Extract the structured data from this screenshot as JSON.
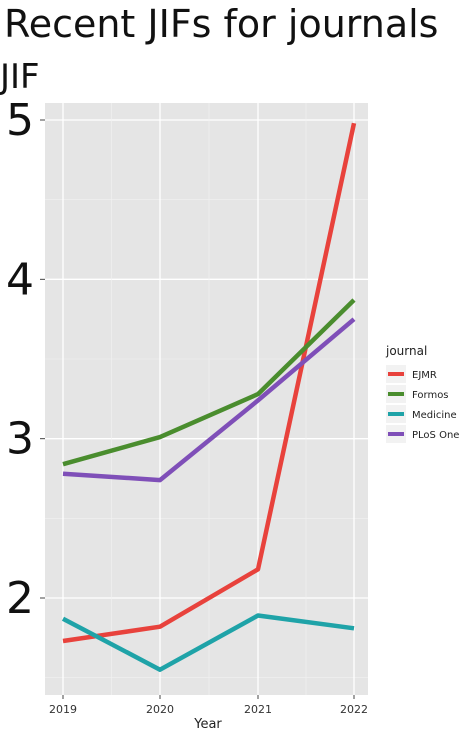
{
  "chart_data": {
    "type": "line",
    "title": "Recent JIFs for journals",
    "ylabel": "JIF",
    "xlabel": "Year",
    "x": [
      2019,
      2020,
      2021,
      2022
    ],
    "x_tick_labels": [
      "2019",
      "2020",
      "2021",
      "2022"
    ],
    "y_ticks": [
      2,
      3,
      4,
      5
    ],
    "y_tick_labels": [
      "2",
      "3",
      "4",
      "5"
    ],
    "ylim": [
      1.37,
      5.05
    ],
    "grid": true,
    "legend_title": "journal",
    "legend_position": "right",
    "series": [
      {
        "name": "EJMR",
        "color": "#e8423c",
        "values": [
          1.73,
          1.82,
          2.18,
          4.98
        ]
      },
      {
        "name": "Formos",
        "color": "#4a8d2e",
        "values": [
          2.84,
          3.01,
          3.28,
          3.87
        ]
      },
      {
        "name": "Medicine",
        "color": "#1fa3a8",
        "values": [
          1.87,
          1.55,
          1.89,
          1.81
        ]
      },
      {
        "name": "PLoS One",
        "legend_label_visible": "PLoS One",
        "color": "#7f4fb8",
        "values": [
          2.78,
          2.74,
          3.24,
          3.75
        ]
      }
    ]
  }
}
